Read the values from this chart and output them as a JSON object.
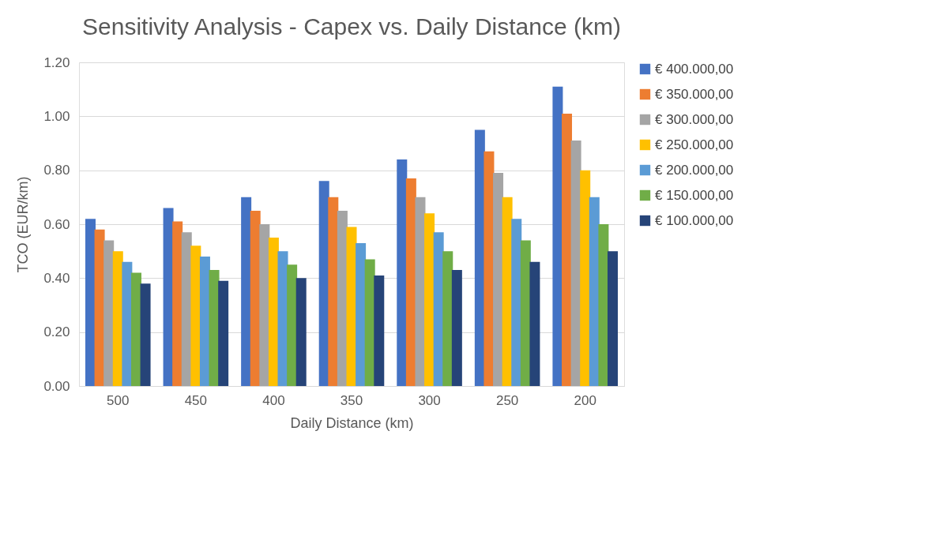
{
  "chart_data": {
    "type": "bar",
    "title": "Sensitivity Analysis - Capex vs. Daily Distance (km)",
    "xlabel": "Daily Distance (km)",
    "ylabel": "TCO (EUR/km)",
    "categories": [
      "500",
      "450",
      "400",
      "350",
      "300",
      "250",
      "200"
    ],
    "series": [
      {
        "name": "€ 400.000,00",
        "color": "#4472c4",
        "values": [
          0.62,
          0.66,
          0.7,
          0.76,
          0.84,
          0.95,
          1.11
        ]
      },
      {
        "name": "€ 350.000,00",
        "color": "#ed7d31",
        "values": [
          0.58,
          0.61,
          0.65,
          0.7,
          0.77,
          0.87,
          1.01
        ]
      },
      {
        "name": "€ 300.000,00",
        "color": "#a5a5a5",
        "values": [
          0.54,
          0.57,
          0.6,
          0.65,
          0.7,
          0.79,
          0.91
        ]
      },
      {
        "name": "€ 250.000,00",
        "color": "#ffc000",
        "values": [
          0.5,
          0.52,
          0.55,
          0.59,
          0.64,
          0.7,
          0.8
        ]
      },
      {
        "name": "€ 200.000,00",
        "color": "#5b9bd5",
        "values": [
          0.46,
          0.48,
          0.5,
          0.53,
          0.57,
          0.62,
          0.7
        ]
      },
      {
        "name": "€ 150.000,00",
        "color": "#70ad47",
        "values": [
          0.42,
          0.43,
          0.45,
          0.47,
          0.5,
          0.54,
          0.6
        ]
      },
      {
        "name": "€ 100.000,00",
        "color": "#264478",
        "values": [
          0.38,
          0.39,
          0.4,
          0.41,
          0.43,
          0.46,
          0.5
        ]
      }
    ],
    "ylim": [
      0,
      1.2
    ],
    "yticks": [
      {
        "value": 0,
        "label": "0.00"
      },
      {
        "value": 0.2,
        "label": "0.20"
      },
      {
        "value": 0.4,
        "label": "0.40"
      },
      {
        "value": 0.6,
        "label": "0.60"
      },
      {
        "value": 0.8,
        "label": "0.80"
      },
      {
        "value": 1.0,
        "label": "1.00"
      },
      {
        "value": 1.2,
        "label": "1.20"
      }
    ],
    "grid": "y",
    "legend": "right"
  }
}
